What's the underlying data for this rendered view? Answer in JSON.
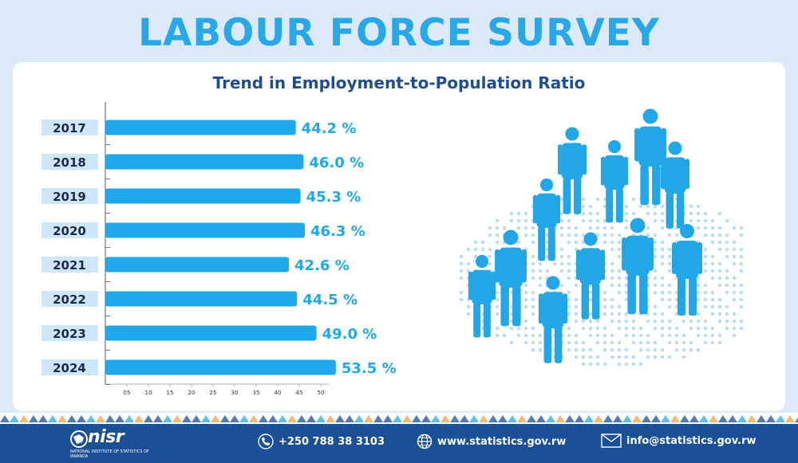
{
  "header": {
    "title": "LABOUR FORCE SURVEY"
  },
  "chart_data": {
    "type": "bar",
    "orientation": "horizontal",
    "title": "Trend in Employment-to-Population Ratio",
    "categories": [
      "2017",
      "2018",
      "2019",
      "2020",
      "2021",
      "2022",
      "2023",
      "2024"
    ],
    "values": [
      44.2,
      46.0,
      45.3,
      46.3,
      42.6,
      44.5,
      49.0,
      53.5
    ],
    "value_labels": [
      "44.2 %",
      "46.0 %",
      "45.3 %",
      "46.3 %",
      "42.6 %",
      "44.5 %",
      "49.0 %",
      "53.5 %"
    ],
    "x_ticks": [
      5,
      10,
      15,
      20,
      25,
      30,
      35,
      40,
      45,
      50
    ],
    "x_tick_labels": [
      "05",
      "10",
      "15",
      "20",
      "25",
      "30",
      "35",
      "40",
      "45",
      "50"
    ],
    "xlim": [
      0,
      52
    ],
    "bar_color": "#1fa9ea",
    "label_color": "#1fa9ea",
    "category_bg": "#cde6fa"
  },
  "colors": {
    "brand": "#29a8e7",
    "title_blue": "#1f4e8c",
    "footer": "#1b4f96"
  },
  "footer": {
    "logo_text": "nisr",
    "logo_subtitle": "NATIONAL INSTITUTE OF STATISTICS OF RWANDA",
    "phone": "+250 788 38 3103",
    "website": "www.statistics.gov.rw",
    "email": "info@statistics.gov.rw"
  }
}
